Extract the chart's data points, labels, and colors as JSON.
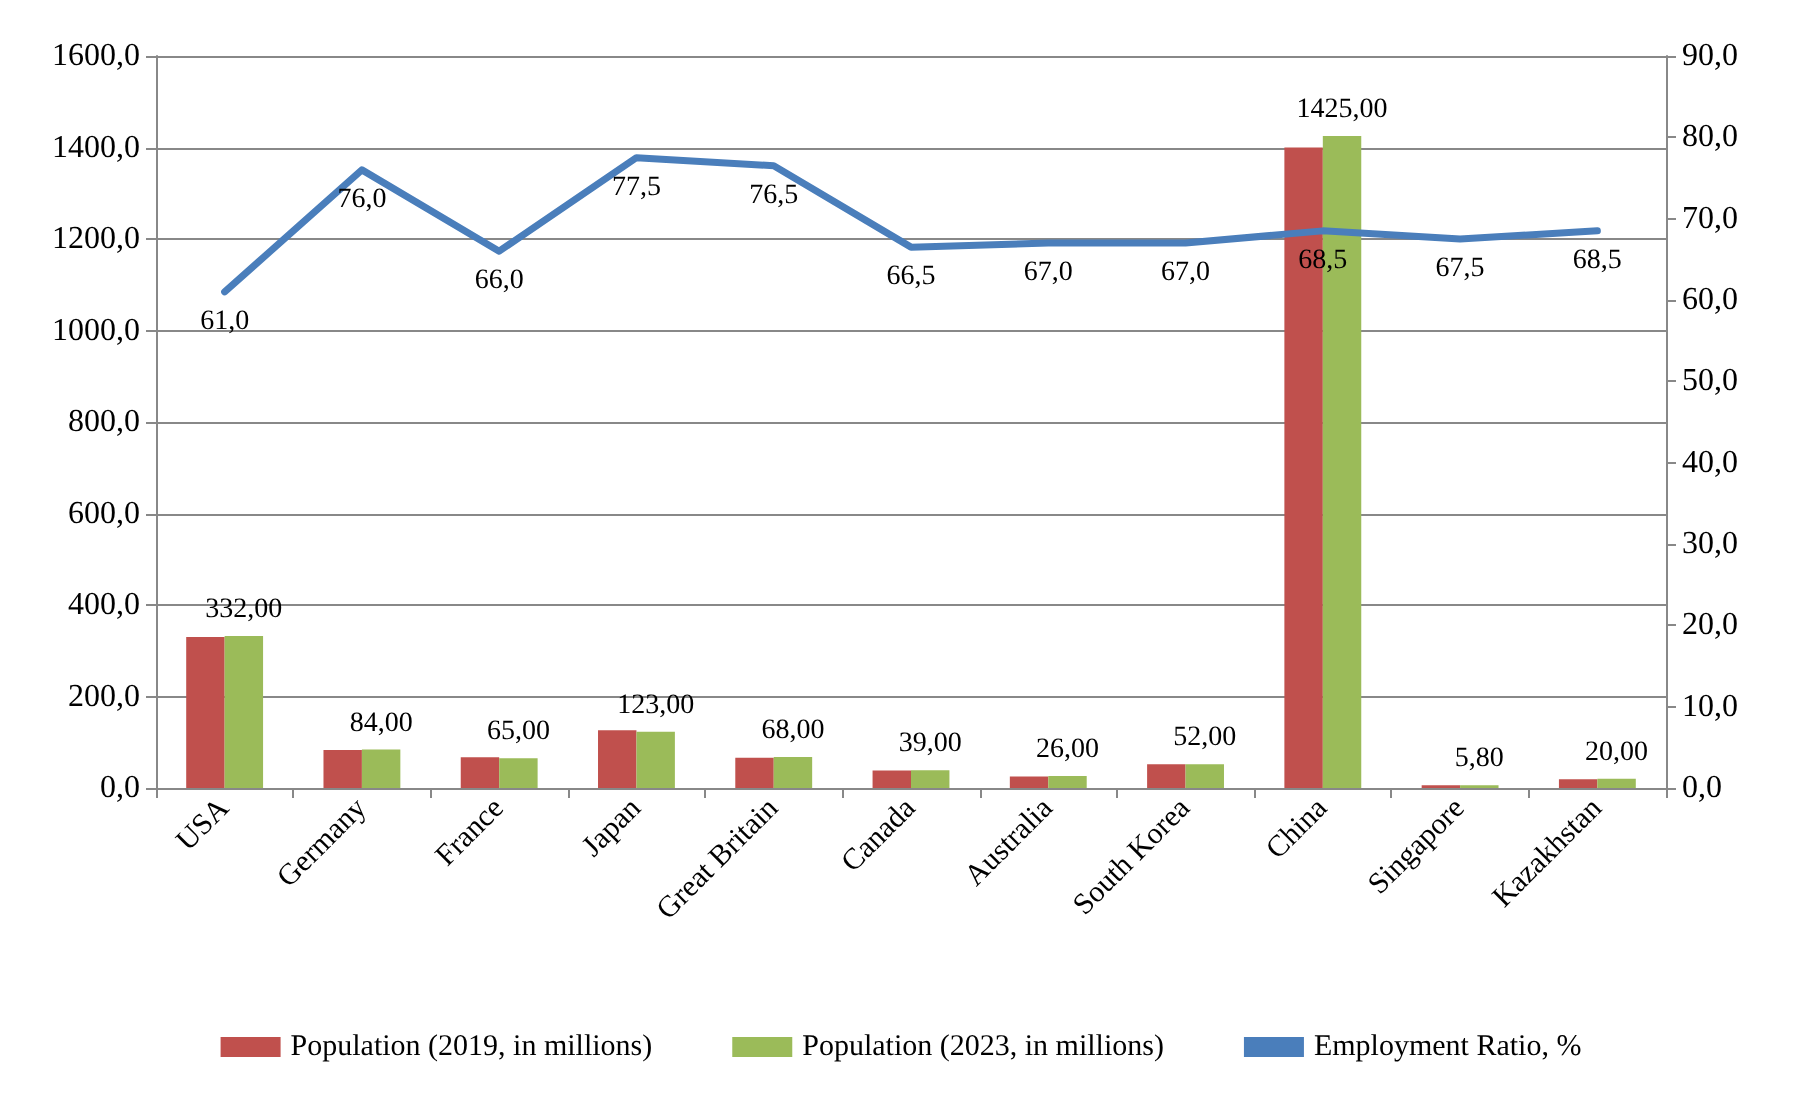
{
  "chart_data": {
    "type": "bar",
    "categories": [
      "USA",
      "Germany",
      "France",
      "Japan",
      "Great Britain",
      "Canada",
      "Australia",
      "South Korea",
      "China",
      "Singapore",
      "Kazakhstan"
    ],
    "series": [
      {
        "name": "Population (2019, in millions)",
        "color": "#c0504d",
        "values": [
          330,
          83,
          67,
          126,
          66,
          38,
          25,
          52,
          1400,
          6,
          19
        ]
      },
      {
        "name": "Population (2023, in millions)",
        "color": "#9bbb59",
        "values": [
          332,
          84,
          65,
          123,
          68,
          39,
          26,
          52,
          1425,
          5.8,
          20
        ],
        "value_labels": [
          "332,00",
          "84,00",
          "65,00",
          "123,00",
          "68,00",
          "39,00",
          "26,00",
          "52,00",
          "1425,00",
          "5,80",
          "20,00"
        ]
      },
      {
        "name": "Employment Ratio, %",
        "type": "line",
        "axis": "y2",
        "color": "#4a7ebb",
        "values": [
          61,
          76,
          66,
          77.5,
          76.5,
          66.5,
          67,
          67,
          68.5,
          67.5,
          68.5
        ],
        "value_labels": [
          "61,0",
          "76,0",
          "66,0",
          "77,5",
          "76,5",
          "66,5",
          "67,0",
          "67,0",
          "68,5",
          "67,5",
          "68,5"
        ]
      }
    ],
    "ylim": [
      0,
      1600
    ],
    "yticks": [
      {
        "value": 0,
        "label": "0,0"
      },
      {
        "value": 200,
        "label": "200,0"
      },
      {
        "value": 400,
        "label": "400,0"
      },
      {
        "value": 600,
        "label": "600,0"
      },
      {
        "value": 800,
        "label": "800,0"
      },
      {
        "value": 1000,
        "label": "1000,0"
      },
      {
        "value": 1200,
        "label": "1200,0"
      },
      {
        "value": 1400,
        "label": "1400,0"
      },
      {
        "value": 1600,
        "label": "1600,0"
      }
    ],
    "y2lim": [
      0,
      90
    ],
    "y2ticks": [
      {
        "value": 0,
        "label": "0,0"
      },
      {
        "value": 10,
        "label": "10,0"
      },
      {
        "value": 20,
        "label": "20,0"
      },
      {
        "value": 30,
        "label": "30,0"
      },
      {
        "value": 40,
        "label": "40,0"
      },
      {
        "value": 50,
        "label": "50,0"
      },
      {
        "value": 60,
        "label": "60,0"
      },
      {
        "value": 70,
        "label": "70,0"
      },
      {
        "value": 80,
        "label": "80,0"
      },
      {
        "value": 90,
        "label": "90,0"
      }
    ],
    "grid": "y",
    "legend": "bottom",
    "marker": "none"
  }
}
